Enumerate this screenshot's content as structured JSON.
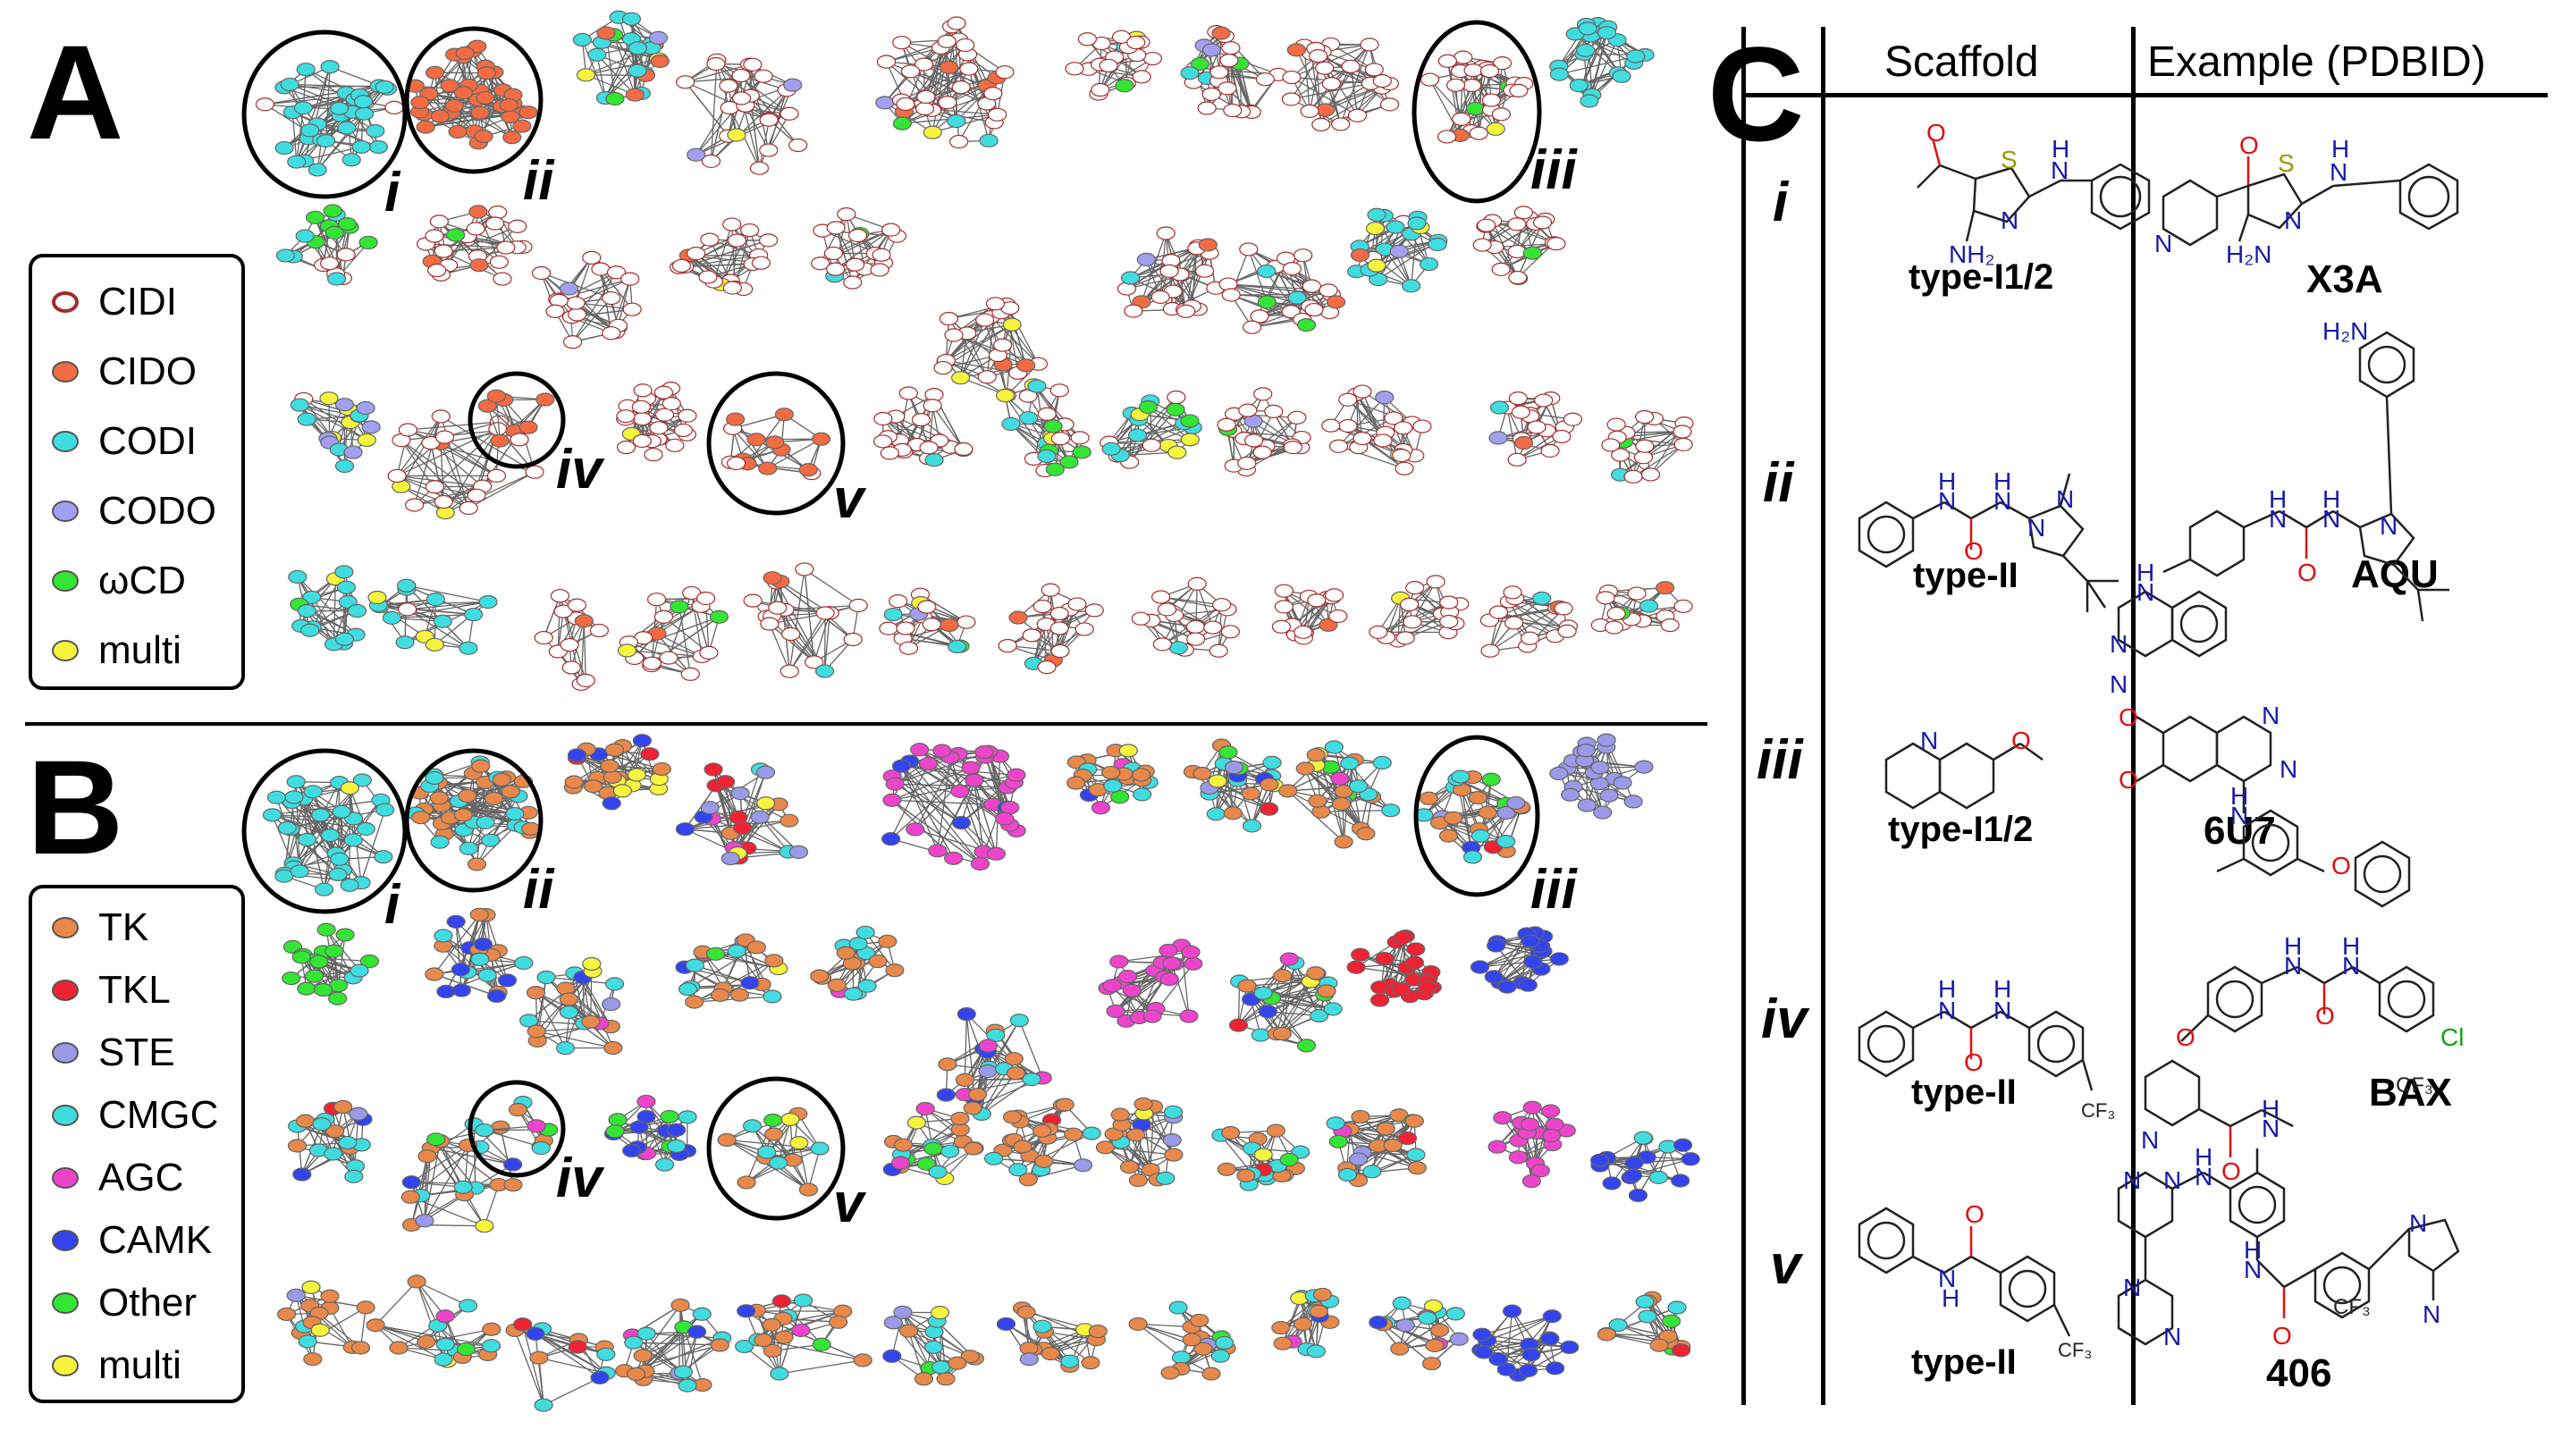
{
  "panels": {
    "a": "A",
    "b": "B",
    "c": "C"
  },
  "legend_a": [
    {
      "label": "CIDI",
      "fill": "#ffffff",
      "stroke": "#a52a2a"
    },
    {
      "label": "CIDO",
      "fill": "#f26b43",
      "stroke": "#555555"
    },
    {
      "label": "CODI",
      "fill": "#3fdde0",
      "stroke": "#555555"
    },
    {
      "label": "CODO",
      "fill": "#a29ff0",
      "stroke": "#555555"
    },
    {
      "label": "ωCD",
      "fill": "#33e633",
      "stroke": "#555555"
    },
    {
      "label": "multi",
      "fill": "#f5f53d",
      "stroke": "#555555"
    }
  ],
  "legend_b": [
    {
      "label": "TK",
      "fill": "#e8884a",
      "stroke": "#555555"
    },
    {
      "label": "TKL",
      "fill": "#ee2233",
      "stroke": "#555555"
    },
    {
      "label": "STE",
      "fill": "#9a9ae8",
      "stroke": "#555555"
    },
    {
      "label": "CMGC",
      "fill": "#3fdde0",
      "stroke": "#555555"
    },
    {
      "label": "AGC",
      "fill": "#ee44cc",
      "stroke": "#555555"
    },
    {
      "label": "CAMK",
      "fill": "#3344ee",
      "stroke": "#555555"
    },
    {
      "label": "Other",
      "fill": "#33e633",
      "stroke": "#555555"
    },
    {
      "label": "multi",
      "fill": "#f5f53d",
      "stroke": "#555555"
    }
  ],
  "cluster_labels": {
    "i": "i",
    "ii": "ii",
    "iii": "iii",
    "iv": "iv",
    "v": "v"
  },
  "table": {
    "col_scaffold": "Scaffold",
    "col_example": "Example (PDBID)",
    "rows": [
      {
        "id": "i",
        "scaffold_type": "type-I1/2",
        "pdbid": "X3A"
      },
      {
        "id": "ii",
        "scaffold_type": "type-II",
        "pdbid": "AQU"
      },
      {
        "id": "iii",
        "scaffold_type": "type-I1/2",
        "pdbid": "6U7"
      },
      {
        "id": "iv",
        "scaffold_type": "type-II",
        "pdbid": "BAX"
      },
      {
        "id": "v",
        "scaffold_type": "type-II",
        "pdbid": "406"
      }
    ]
  },
  "atoms": {
    "O": "O",
    "S": "S",
    "N": "N",
    "H": "H",
    "NH2": "NH₂",
    "H2N": "H₂N",
    "CF3": "CF₃",
    "Cl": "Cl"
  },
  "colors": {
    "oxygen": "#e01010",
    "nitrogen": "#1a1aa8",
    "sulfur": "#9a9a00",
    "chlorine": "#12a012",
    "edge": "#666666"
  }
}
